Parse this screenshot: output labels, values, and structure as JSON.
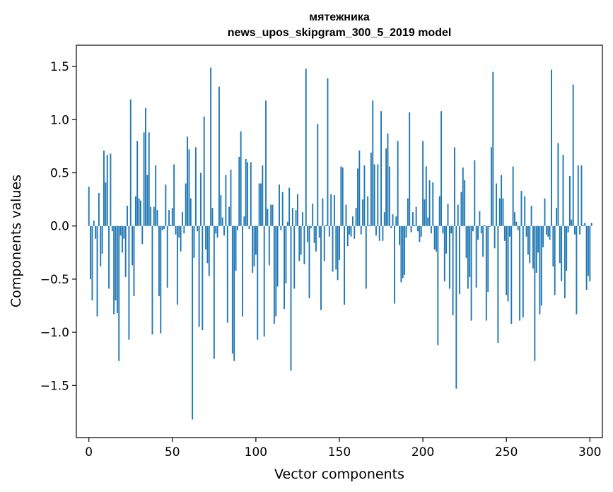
{
  "chart_data": {
    "type": "bar",
    "title": "мятежника",
    "subtitle": "news_upos_skipgram_300_5_2019 model",
    "xlabel": "Vector components",
    "ylabel": "Components values",
    "xlim": [
      -7.5,
      307.5
    ],
    "ylim": [
      -1.99,
      1.7
    ],
    "xticks": [
      0,
      50,
      100,
      150,
      200,
      250,
      300
    ],
    "yticks": [
      -1.5,
      -1.0,
      -0.5,
      0.0,
      0.5,
      1.0,
      1.5
    ],
    "xtick_labels": [
      "0",
      "50",
      "100",
      "150",
      "200",
      "250",
      "300"
    ],
    "ytick_labels": [
      "−1.5",
      "−1.0",
      "−0.5",
      "0.0",
      "0.5",
      "1.0",
      "1.5"
    ],
    "color": "#1f77b4",
    "grid": false,
    "values": [
      0.37,
      -0.5,
      -0.7,
      0.05,
      -0.12,
      -0.85,
      0.31,
      -0.38,
      -0.26,
      0.71,
      0.41,
      0.67,
      -0.59,
      0.68,
      -0.05,
      -0.83,
      -0.7,
      -0.82,
      -1.27,
      -0.09,
      -0.25,
      -0.12,
      -0.48,
      0.19,
      -1.07,
      1.19,
      -0.37,
      -0.66,
      0.28,
      0.8,
      0.26,
      0.24,
      -0.17,
      0.88,
      1.11,
      0.48,
      0.88,
      0.18,
      -1.02,
      0.18,
      0.57,
      0.15,
      -0.66,
      -1.01,
      -0.04,
      -0.03,
      0.39,
      -0.58,
      0.15,
      0.01,
      0.17,
      0.58,
      -0.08,
      -0.74,
      -0.11,
      -0.24,
      0.13,
      -0.07,
      0.4,
      0.84,
      0.72,
      0.26,
      -1.82,
      -0.3,
      0.74,
      -0.05,
      -0.95,
      0.5,
      -0.98,
      1.03,
      -0.22,
      -0.35,
      -0.47,
      1.49,
      0.17,
      -1.25,
      -0.07,
      -0.11,
      1.31,
      0.29,
      0.08,
      -0.09,
      0.48,
      -0.91,
      0.18,
      0.53,
      -1.2,
      -1.27,
      -0.42,
      -0.04,
      0.65,
      0.89,
      -0.85,
      0.09,
      0.63,
      0.6,
      -0.03,
      0.6,
      -0.44,
      -0.38,
      -0.27,
      -1.07,
      0.4,
      0.4,
      0.57,
      -1.04,
      1.18,
      0.16,
      -0.37,
      0.2,
      0.2,
      -0.92,
      -0.85,
      -0.57,
      0.39,
      -0.04,
      0.32,
      -0.78,
      -0.54,
      0.04,
      0.36,
      -1.36,
      0.17,
      -0.59,
      0.15,
      0.3,
      -0.33,
      -0.27,
      0.13,
      -0.36,
      1.48,
      -0.15,
      -0.68,
      -0.02,
      0.21,
      -0.16,
      -0.24,
      0.96,
      -0.11,
      -0.79,
      0.26,
      -0.33,
      0.01,
      1.39,
      -0.1,
      0.3,
      -0.43,
      0.29,
      -0.41,
      -0.51,
      -0.32,
      0.56,
      0.55,
      -0.74,
      0.2,
      -0.19,
      -0.08,
      -0.1,
      0.09,
      -0.12,
      0.17,
      0.54,
      0.71,
      -0.08,
      0.25,
      0.57,
      -0.59,
      0.28,
      0.01,
      0.69,
      1.18,
      0.58,
      -0.09,
      0.58,
      -0.14,
      1.08,
      -0.14,
      0.13,
      0.73,
      0.87,
      0.56,
      -0.02,
      0.11,
      -0.73,
      0.09,
      0.8,
      -0.18,
      -0.53,
      -0.49,
      -0.46,
      -0.11,
      0.26,
      1.07,
      -0.06,
      0.13,
      0.01,
      0.18,
      -0.05,
      -0.15,
      -0.1,
      0.8,
      0.25,
      0.56,
      0.08,
      0.43,
      -0.07,
      0.41,
      -0.22,
      -0.24,
      -1.12,
      0.28,
      1.08,
      -0.07,
      -0.52,
      -0.26,
      0.21,
      -0.59,
      -0.07,
      -0.84,
      0.74,
      -1.53,
      0.2,
      -0.64,
      0.32,
      0.55,
      0.43,
      -0.3,
      -0.59,
      -0.48,
      -0.89,
      -0.05,
      0.62,
      -0.58,
      -0.13,
      0.14,
      -0.07,
      -0.29,
      0.01,
      -0.89,
      -0.62,
      -0.01,
      0.74,
      1.45,
      -0.21,
      0.4,
      -1.1,
      0.26,
      0.48,
      0.26,
      -0.14,
      -0.65,
      -0.71,
      -0.1,
      -0.92,
      0.56,
      0.13,
      0.04,
      -0.04,
      -0.89,
      0.33,
      -0.86,
      0.28,
      -0.1,
      -0.27,
      -0.35,
      0.19,
      -0.4,
      -1.27,
      -0.44,
      -0.25,
      -0.83,
      -0.75,
      -0.2,
      0.26,
      -0.08,
      -0.1,
      -0.13,
      1.47,
      -0.38,
      -0.65,
      0.17,
      0.78,
      -0.35,
      -0.52,
      0.67,
      -0.68,
      -0.42,
      -0.06,
      0.47,
      0.06,
      1.33,
      -0.08,
      -0.83,
      0.57,
      -0.08,
      0.57,
      0.01,
      0.03,
      -0.6,
      -0.47,
      -0.52,
      0.03
    ]
  }
}
